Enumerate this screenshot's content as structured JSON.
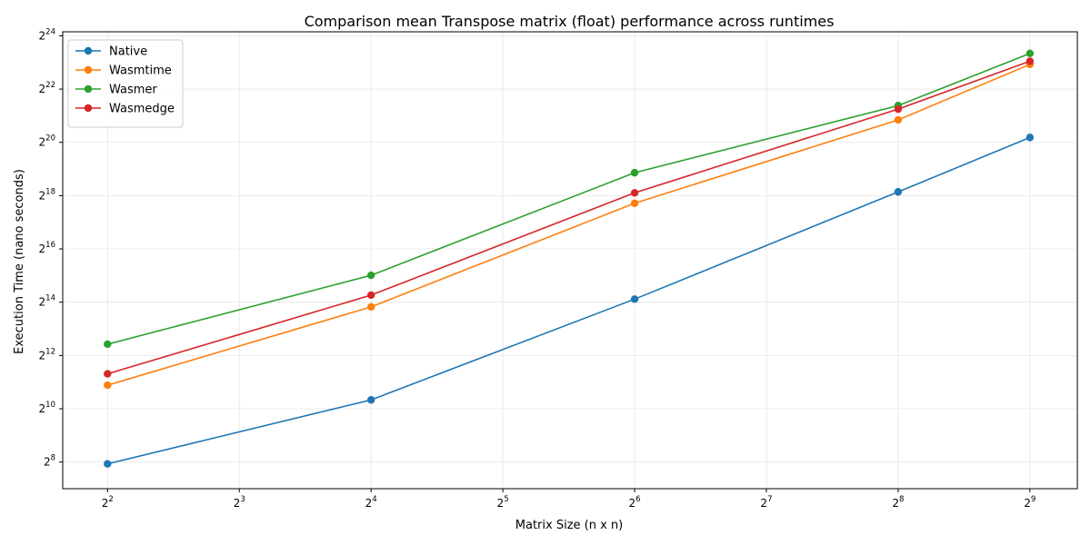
{
  "chart_data": {
    "type": "line",
    "title": "Comparison mean Transpose matrix (float) performance across runtimes",
    "xlabel": "Matrix Size (n x n)",
    "ylabel": "Execution Time (nano seconds)",
    "x_scale": "log2",
    "y_scale": "log2",
    "x": [
      4,
      16,
      64,
      256,
      512
    ],
    "xlim_log2": [
      1.66,
      9.36
    ],
    "ylim_log2": [
      7.0,
      24.15
    ],
    "x_ticks": [
      {
        "base": "2",
        "exp": "2",
        "value": 4
      },
      {
        "base": "2",
        "exp": "3",
        "value": 8
      },
      {
        "base": "2",
        "exp": "4",
        "value": 16
      },
      {
        "base": "2",
        "exp": "5",
        "value": 32
      },
      {
        "base": "2",
        "exp": "6",
        "value": 64
      },
      {
        "base": "2",
        "exp": "7",
        "value": 128
      },
      {
        "base": "2",
        "exp": "8",
        "value": 256
      },
      {
        "base": "2",
        "exp": "9",
        "value": 512
      }
    ],
    "y_ticks": [
      {
        "base": "2",
        "exp": "8",
        "value": 256
      },
      {
        "base": "2",
        "exp": "10",
        "value": 1024
      },
      {
        "base": "2",
        "exp": "12",
        "value": 4096
      },
      {
        "base": "2",
        "exp": "14",
        "value": 16384
      },
      {
        "base": "2",
        "exp": "16",
        "value": 65536
      },
      {
        "base": "2",
        "exp": "18",
        "value": 262144
      },
      {
        "base": "2",
        "exp": "20",
        "value": 1048576
      },
      {
        "base": "2",
        "exp": "22",
        "value": 4194304
      },
      {
        "base": "2",
        "exp": "24",
        "value": 16777216
      }
    ],
    "grid": true,
    "legend_position": "top-left",
    "series": [
      {
        "name": "Native",
        "color": "#1f77b4",
        "values": [
          244,
          1290,
          17750,
          289000,
          1190000
        ]
      },
      {
        "name": "Wasmtime",
        "color": "#ff7f0e",
        "values": [
          1890,
          14510,
          215000,
          1880000,
          7960000
        ]
      },
      {
        "name": "Wasmer",
        "color": "#2ca02c",
        "values": [
          5490,
          33000,
          476000,
          2730000,
          10600000
        ]
      },
      {
        "name": "Wasmedge",
        "color": "#d62728",
        "values": [
          2540,
          19700,
          282000,
          2490000,
          8650000
        ]
      }
    ]
  }
}
